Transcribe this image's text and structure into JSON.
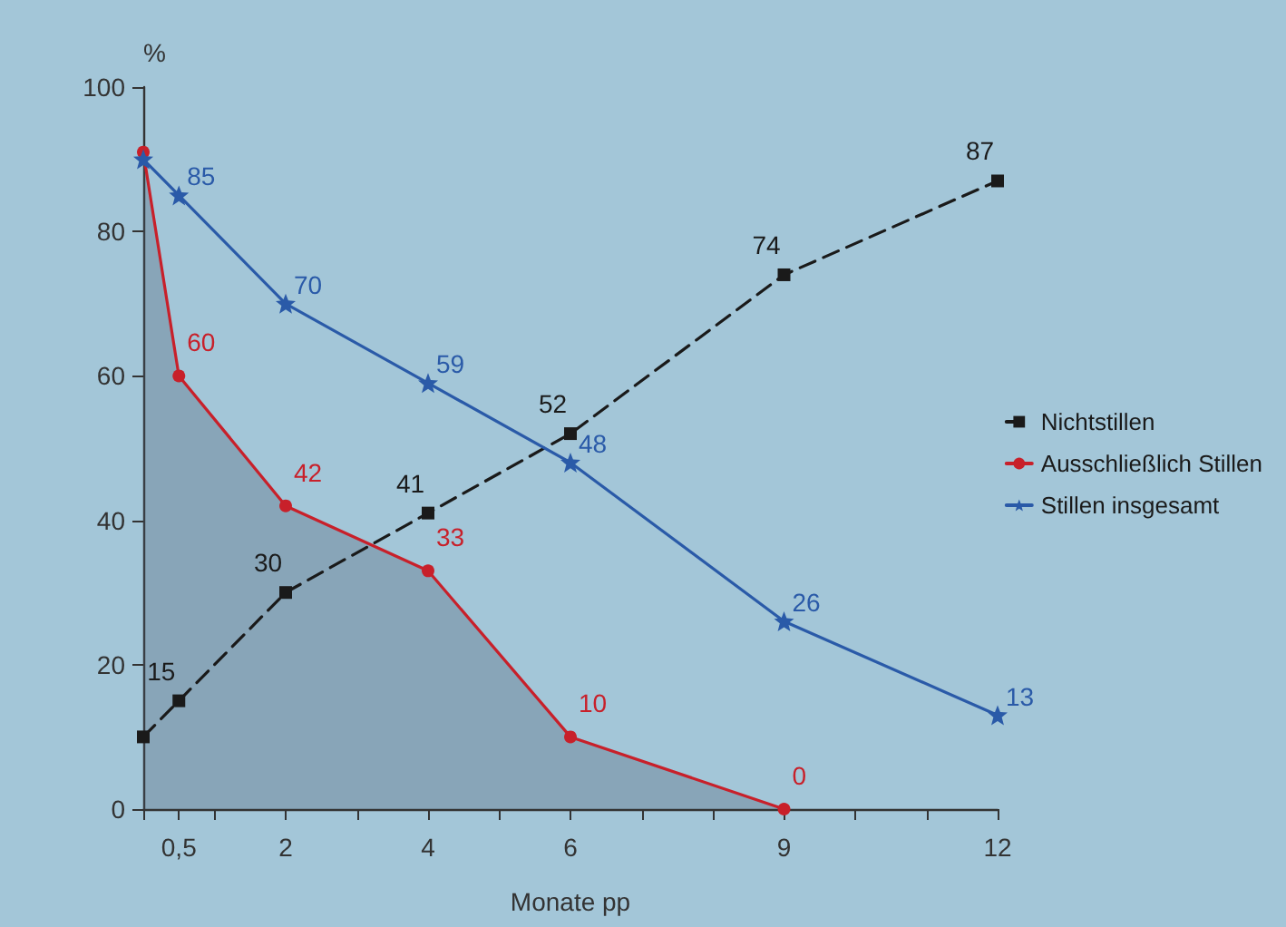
{
  "chart_data": {
    "type": "line",
    "xlabel": "Monate pp",
    "ylabel": "%",
    "x": [
      0,
      0.5,
      2,
      4,
      6,
      9,
      12
    ],
    "xlim": [
      0,
      12
    ],
    "xticks": [
      {
        "value": 0,
        "label": null
      },
      {
        "value": 0.5,
        "label": "0,5"
      },
      {
        "value": 1,
        "label": null
      },
      2,
      {
        "value": 3,
        "label": null
      },
      4,
      {
        "value": 5,
        "label": null
      },
      6,
      {
        "value": 7,
        "label": null
      },
      {
        "value": 8,
        "label": null
      },
      9,
      {
        "value": 10,
        "label": null
      },
      {
        "value": 11,
        "label": null
      },
      12
    ],
    "ylim": [
      0,
      100
    ],
    "yticks": [
      0,
      20,
      40,
      60,
      80,
      100
    ],
    "grid": false,
    "legend": "right",
    "series": [
      {
        "name": "Nichtstillen",
        "color": "#1a1a1a",
        "marker": "square",
        "line_style": "dashed",
        "values": [
          10,
          15,
          30,
          41,
          52,
          74,
          87
        ],
        "value_labels": [
          null,
          "15",
          "30",
          "41",
          "52",
          "74",
          "87"
        ]
      },
      {
        "name": "Ausschließlich Stillen",
        "type": "area",
        "color": "#c8202a",
        "marker": "circle",
        "line_style": "solid",
        "values": [
          91,
          60,
          42,
          33,
          10,
          0,
          null
        ],
        "value_labels": [
          null,
          "60",
          "42",
          "33",
          "10",
          "0",
          null
        ]
      },
      {
        "name": "Stillen insgesamt",
        "color": "#2a5aa8",
        "marker": "star",
        "line_style": "solid",
        "values": [
          90,
          85,
          70,
          59,
          48,
          26,
          13
        ],
        "value_labels": [
          null,
          "85",
          "70",
          "59",
          "48",
          "26",
          "13"
        ]
      }
    ]
  }
}
